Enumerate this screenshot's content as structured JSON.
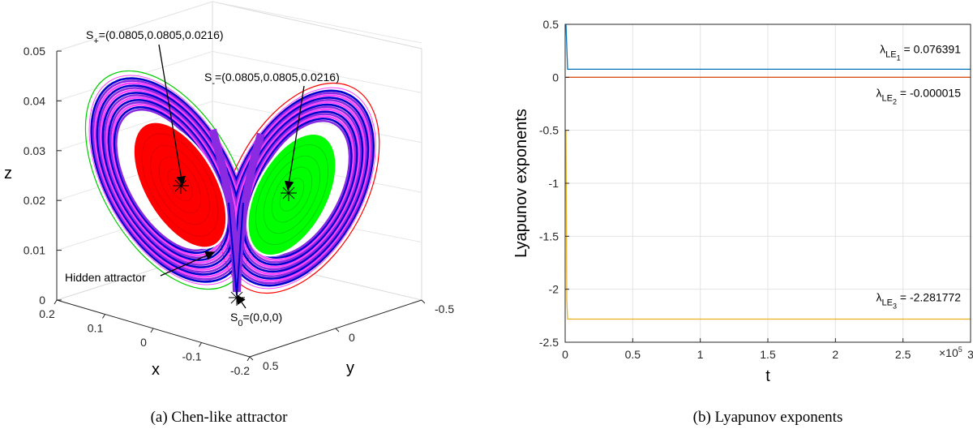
{
  "chart_data": [
    {
      "type": "scatter",
      "caption": "(a)  Chen-like attractor",
      "xlabel": "x",
      "ylabel": "y",
      "zlabel": "z",
      "x_ticks": [
        "0.2",
        "0.1",
        "0",
        "-0.1",
        "-0.2"
      ],
      "y_ticks": [
        "-0.5",
        "0",
        "0.5"
      ],
      "z_ticks": [
        "0",
        "0.01",
        "0.02",
        "0.03",
        "0.04",
        "0.05"
      ],
      "zlim": [
        0,
        0.05
      ],
      "colors": {
        "left_core": "#ff0000",
        "right_core": "#00ff00",
        "band": "#8a2be2",
        "band_dark": "#0000cc",
        "band_light": "#ff44ff",
        "outer_left": "#00cc00",
        "outer_right": "#ff0000"
      },
      "annotations": [
        {
          "id": "s_plus",
          "base": "S",
          "sub": "+",
          "rest": "=(0.0805,0.0805,0.0216)"
        },
        {
          "id": "s_minus",
          "base": "S",
          "sub": "-",
          "rest": "=(0.0805,0.0805,0.0216)"
        },
        {
          "id": "s_zero",
          "base": "S",
          "sub": "0",
          "rest": "=(0,0,0)"
        },
        {
          "id": "hidden",
          "text": "Hidden attractor"
        }
      ]
    },
    {
      "type": "line",
      "caption": "(b)  Lyapunov exponents",
      "xlabel": "t",
      "ylabel": "Lyapunov exponents",
      "x_multiplier_base": "×10",
      "x_multiplier_exp": "5",
      "xlim": [
        0,
        3
      ],
      "ylim": [
        -2.5,
        0.5
      ],
      "x_ticks": [
        0,
        0.5,
        1,
        1.5,
        2,
        2.5,
        3
      ],
      "y_ticks": [
        0.5,
        0,
        -0.5,
        -1,
        -1.5,
        -2,
        -2.5
      ],
      "grid": true,
      "series": [
        {
          "label_base": "λ",
          "label_sub": "LE",
          "label_subsub": "1",
          "label_value": " = 0.076391",
          "value": 0.076391,
          "color": "#0072bd"
        },
        {
          "label_base": "λ",
          "label_sub": "LE",
          "label_subsub": "2",
          "label_value": " = -0.000015",
          "value": -1.5e-05,
          "color": "#d95319"
        },
        {
          "label_base": "λ",
          "label_sub": "LE",
          "label_subsub": "3",
          "label_value": " = -2.281772",
          "value": -2.281772,
          "color": "#edb120"
        }
      ]
    }
  ]
}
